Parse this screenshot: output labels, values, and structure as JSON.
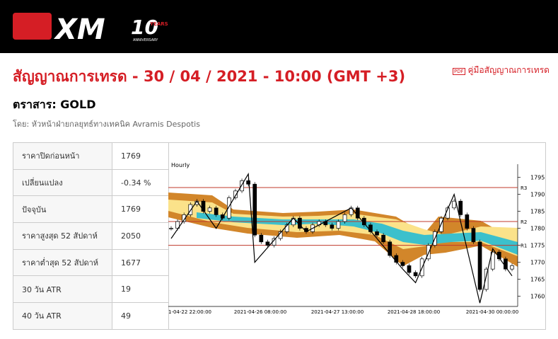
{
  "header": {
    "brand": "XM",
    "anniversary_number": "10",
    "years": "YEARS",
    "anniversary": "ANNIVERSARY"
  },
  "title": "สัญญาณการเทรด - 30 / 04 / 2021 - 10:00 (GMT +3)",
  "guide_link": "คู่มือสัญญาณการเทรด",
  "instrument": "ตราสาร: GOLD",
  "author": "โดย: หัวหน้าฝ่ายกลยุทธ์ทางเทคนิค Avramis Despotis",
  "table": {
    "rows": [
      [
        "ราคาปิดก่อนหน้า",
        "1769"
      ],
      [
        "เปลี่ยนแปลง",
        "-0.34 %"
      ],
      [
        "ปัจจุบัน",
        "1769"
      ],
      [
        "ราคาสูงสุด 52 สัปดาห์",
        "2050"
      ],
      [
        "ราคาต่ำสุด 52 สัปดาห์",
        "1677"
      ],
      [
        "30 วัน ATR",
        "19"
      ],
      [
        "40 วัน ATR",
        "49"
      ]
    ]
  },
  "chart": {
    "period": "Hourly",
    "ylim": [
      1757,
      1797
    ],
    "yticks": [
      1760,
      1765,
      1770,
      1775,
      1780,
      1785,
      1790,
      1795
    ],
    "levels": [
      {
        "name": "R3",
        "value": 1792
      },
      {
        "name": "R2",
        "value": 1782
      },
      {
        "name": "R1",
        "value": 1775
      }
    ],
    "xtick_labels": [
      "1-04-22 22:00:00",
      "2021-04-26 08:00:00",
      "2021-04-27 13:00:00",
      "2021-04-28 18:00:00",
      "2021-04-30 00:00:00"
    ],
    "closes": [
      1780,
      1782,
      1784,
      1787,
      1788,
      1785,
      1786,
      1784,
      1783,
      1789,
      1791,
      1794,
      1793,
      1778,
      1776,
      1775,
      1777,
      1779,
      1781,
      1783,
      1780,
      1779,
      1781,
      1782,
      1781,
      1780,
      1782,
      1784,
      1786,
      1783,
      1781,
      1779,
      1778,
      1776,
      1772,
      1770,
      1769,
      1767,
      1766,
      1771,
      1775,
      1779,
      1783,
      1786,
      1788,
      1784,
      1780,
      1776,
      1762,
      1768,
      1773,
      1771,
      1768,
      1769
    ],
    "zigzag": {
      "x": [
        0,
        4,
        7,
        12,
        13,
        19,
        21,
        28,
        36,
        38,
        44,
        48,
        50,
        53
      ],
      "values": [
        1777,
        1788,
        1780,
        1796,
        1770,
        1783,
        1779,
        1786,
        1768,
        1764,
        1790,
        1758,
        1774,
        1766
      ]
    }
  }
}
